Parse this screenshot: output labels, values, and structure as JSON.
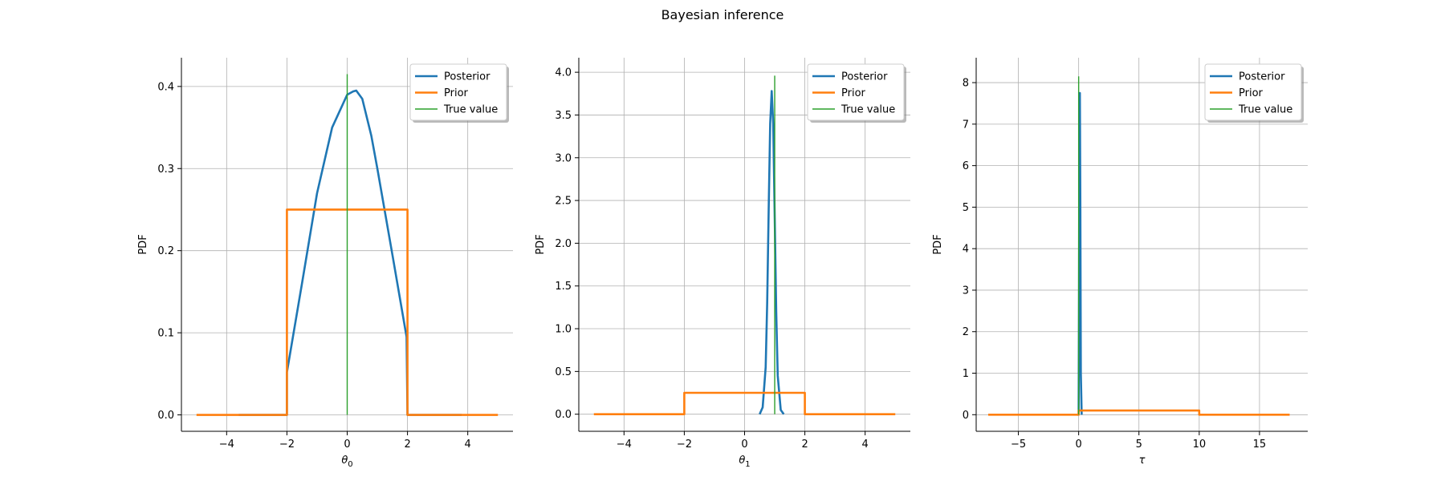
{
  "figure": {
    "title": "Bayesian inference"
  },
  "chart_data": [
    {
      "type": "line",
      "xlabel": "θ0",
      "xlabel_main": "θ",
      "xlabel_sub": "0",
      "ylabel": "PDF",
      "xlim": [
        -5.5,
        5.5
      ],
      "ylim": [
        -0.02,
        0.435
      ],
      "xticks": [
        -4,
        -2,
        0,
        2,
        4
      ],
      "xtick_labels": [
        "−4",
        "−2",
        "0",
        "2",
        "4"
      ],
      "yticks": [
        0.0,
        0.1,
        0.2,
        0.3,
        0.4
      ],
      "ytick_labels": [
        "0.0",
        "0.1",
        "0.2",
        "0.3",
        "0.4"
      ],
      "grid": true,
      "legend_position": "top-right",
      "series": [
        {
          "name": "Posterior",
          "color": "#1f77b4",
          "x": [
            -3.6,
            -2.0,
            -2.0,
            -1.5,
            -1.0,
            -0.5,
            0.0,
            0.2,
            0.3,
            0.5,
            0.8,
            1.0,
            1.5,
            1.97,
            2.0,
            2.0,
            3.8
          ],
          "y": [
            0.0,
            0.0,
            0.052,
            0.16,
            0.27,
            0.35,
            0.39,
            0.394,
            0.395,
            0.385,
            0.34,
            0.3,
            0.195,
            0.095,
            0.0,
            0.0,
            0.0
          ]
        },
        {
          "name": "Prior",
          "color": "#ff7f0e",
          "x": [
            -5.0,
            -2.0,
            -2.0,
            2.0,
            2.0,
            5.0
          ],
          "y": [
            0.0,
            0.0,
            0.25,
            0.25,
            0.0,
            0.0
          ]
        }
      ],
      "true_value": {
        "name": "True value",
        "color": "#2ca02c",
        "x": 0.0,
        "ymin": 0.0,
        "ymax": 0.415
      }
    },
    {
      "type": "line",
      "xlabel": "θ1",
      "xlabel_main": "θ",
      "xlabel_sub": "1",
      "ylabel": "PDF",
      "xlim": [
        -5.5,
        5.5
      ],
      "ylim": [
        -0.2,
        4.17
      ],
      "xticks": [
        -4,
        -2,
        0,
        2,
        4
      ],
      "xtick_labels": [
        "−4",
        "−2",
        "0",
        "2",
        "4"
      ],
      "yticks": [
        0.0,
        0.5,
        1.0,
        1.5,
        2.0,
        2.5,
        3.0,
        3.5,
        4.0
      ],
      "ytick_labels": [
        "0.0",
        "0.5",
        "1.0",
        "1.5",
        "2.0",
        "2.5",
        "3.0",
        "3.5",
        "4.0"
      ],
      "grid": true,
      "legend_position": "top-right",
      "series": [
        {
          "name": "Posterior",
          "color": "#1f77b4",
          "x": [
            0.5,
            0.6,
            0.7,
            0.75,
            0.8,
            0.85,
            0.9,
            0.95,
            1.0,
            1.05,
            1.1,
            1.2,
            1.3
          ],
          "y": [
            0.0,
            0.08,
            0.55,
            1.3,
            2.4,
            3.4,
            3.78,
            3.4,
            2.3,
            1.2,
            0.45,
            0.05,
            0.0
          ]
        },
        {
          "name": "Prior",
          "color": "#ff7f0e",
          "x": [
            -5.0,
            -2.0,
            -2.0,
            2.0,
            2.0,
            5.0
          ],
          "y": [
            0.0,
            0.0,
            0.25,
            0.25,
            0.0,
            0.0
          ]
        }
      ],
      "true_value": {
        "name": "True value",
        "color": "#2ca02c",
        "x": 1.0,
        "ymin": 0.0,
        "ymax": 3.96
      }
    },
    {
      "type": "line",
      "xlabel": "τ",
      "xlabel_main": "τ",
      "xlabel_sub": "",
      "ylabel": "PDF",
      "xlim": [
        -8.5,
        19.0
      ],
      "ylim": [
        -0.4,
        8.6
      ],
      "xticks": [
        -5,
        0,
        5,
        10,
        15
      ],
      "xtick_labels": [
        "−5",
        "0",
        "5",
        "10",
        "15"
      ],
      "yticks": [
        0,
        1,
        2,
        3,
        4,
        5,
        6,
        7,
        8
      ],
      "ytick_labels": [
        "0",
        "1",
        "2",
        "3",
        "4",
        "5",
        "6",
        "7",
        "8"
      ],
      "grid": true,
      "legend_position": "top-right",
      "series": [
        {
          "name": "Posterior",
          "color": "#1f77b4",
          "x": [
            -0.1,
            0.0,
            0.03,
            0.06,
            0.1,
            0.14,
            0.18,
            0.25
          ],
          "y": [
            0.0,
            0.0,
            3.0,
            7.0,
            7.75,
            5.0,
            1.0,
            0.0
          ]
        },
        {
          "name": "Prior",
          "color": "#ff7f0e",
          "x": [
            -7.5,
            0.0,
            0.0,
            10.0,
            10.0,
            17.5
          ],
          "y": [
            0.0,
            0.0,
            0.1,
            0.1,
            0.0,
            0.0
          ]
        }
      ],
      "true_value": {
        "name": "True value",
        "color": "#2ca02c",
        "x": 0.0,
        "ymin": 0.0,
        "ymax": 8.15
      }
    }
  ]
}
